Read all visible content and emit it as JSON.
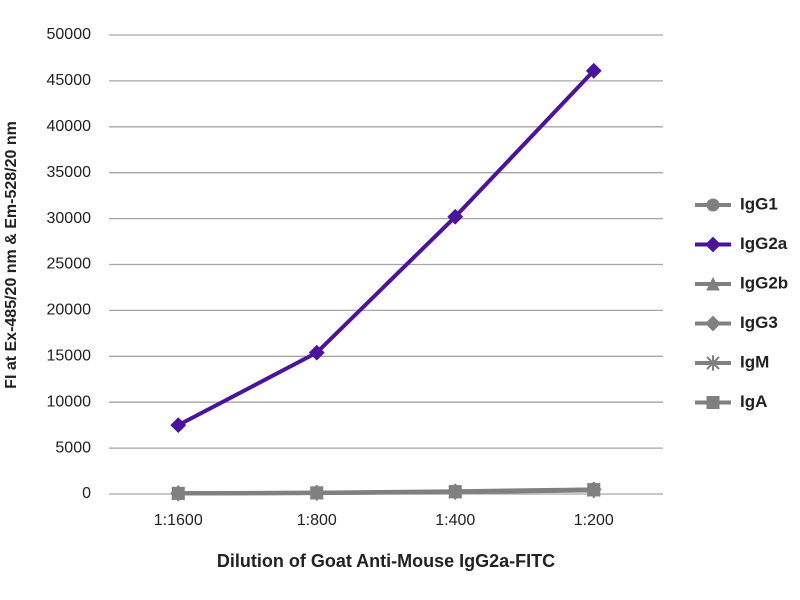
{
  "chart_data": {
    "type": "line",
    "x_label": "Dilution of Goat Anti-Mouse IgG2a-FITC",
    "y_label": "FI at Ex-485/20 nm & Em-528/20 nm",
    "categories": [
      "1:1600",
      "1:800",
      "1:400",
      "1:200"
    ],
    "series": [
      {
        "name": "IgG1",
        "color": "#808080",
        "marker": "circle",
        "values": [
          50,
          100,
          200,
          400
        ]
      },
      {
        "name": "IgG2a",
        "color": "#4b12a0",
        "marker": "diamond",
        "values": [
          7500,
          15400,
          30200,
          46100
        ]
      },
      {
        "name": "IgG2b",
        "color": "#808080",
        "marker": "triangle",
        "values": [
          80,
          120,
          250,
          450
        ]
      },
      {
        "name": "IgG3",
        "color": "#808080",
        "marker": "diamond",
        "values": [
          100,
          150,
          300,
          500
        ]
      },
      {
        "name": "IgM",
        "color": "#808080",
        "marker": "star",
        "values": [
          60,
          110,
          220,
          420
        ]
      },
      {
        "name": "IgA",
        "color": "#808080",
        "marker": "square",
        "values": [
          70,
          130,
          260,
          480
        ]
      }
    ],
    "ylim": [
      0,
      50000
    ],
    "yticks": [
      0,
      5000,
      10000,
      15000,
      20000,
      25000,
      30000,
      35000,
      40000,
      45000,
      50000
    ],
    "grid": true,
    "legend": "right"
  }
}
